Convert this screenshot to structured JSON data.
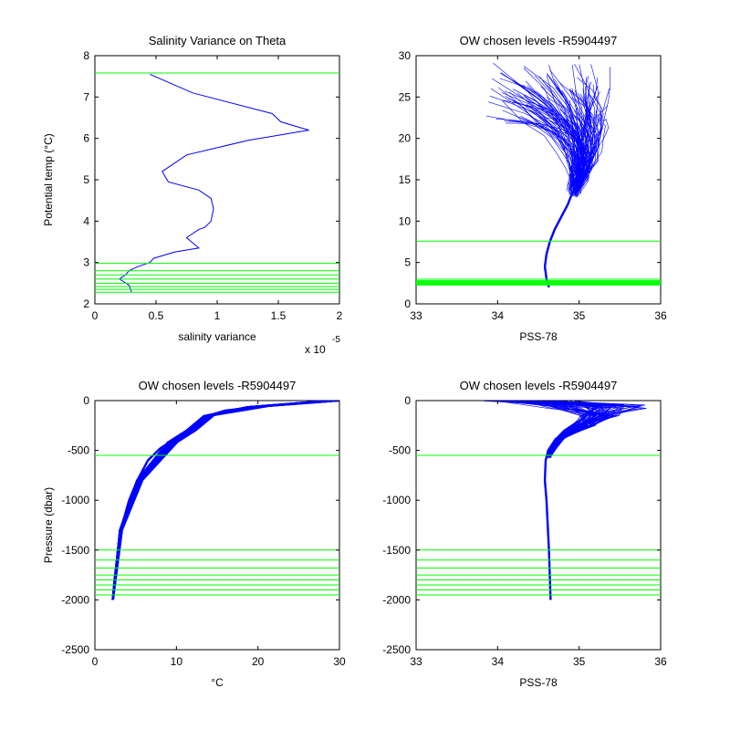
{
  "colors": {
    "profile": "#0000ff",
    "levels": "#00ff00",
    "axes": "#000000",
    "background": "#ffffff"
  },
  "chart_data": [
    {
      "id": "p1",
      "type": "line",
      "title": "Salinity Variance on Theta",
      "xlabel": "salinity variance",
      "ylabel": "Potential temp (°C)",
      "multiplier": "x 10",
      "multiplier_exp": "-5",
      "xlim": [
        0,
        2
      ],
      "ylim": [
        2,
        8
      ],
      "xticks": [
        0,
        0.5,
        1,
        1.5,
        2
      ],
      "xtick_labels": [
        "0",
        "0.5",
        "1",
        "1.5",
        "2"
      ],
      "yticks": [
        2,
        3,
        4,
        5,
        6,
        7,
        8
      ],
      "ytick_labels": [
        "2",
        "3",
        "4",
        "5",
        "6",
        "7",
        "8"
      ],
      "hlines": [
        7.58,
        2.98,
        2.8,
        2.7,
        2.6,
        2.5,
        2.42,
        2.35,
        2.28
      ],
      "series": [
        {
          "x": [
            0.45,
            0.8,
            1.45,
            1.52,
            1.75,
            1.25,
            0.75,
            0.65,
            0.55,
            0.6,
            0.85,
            0.95,
            0.97,
            0.95,
            0.9,
            0.85,
            0.75,
            0.85,
            0.65,
            0.48,
            0.45,
            0.35,
            0.28,
            0.25,
            0.2,
            0.28,
            0.3
          ],
          "y": [
            7.55,
            7.1,
            6.6,
            6.4,
            6.2,
            5.95,
            5.6,
            5.4,
            5.2,
            4.95,
            4.75,
            4.55,
            4.3,
            4.0,
            3.85,
            3.8,
            3.6,
            3.35,
            3.25,
            3.1,
            3.0,
            2.9,
            2.8,
            2.7,
            2.6,
            2.45,
            2.28
          ]
        }
      ]
    },
    {
      "id": "p2",
      "type": "line",
      "title": "OW chosen levels -R5904497",
      "xlabel": "PSS-78",
      "ylabel": "",
      "xlim": [
        33,
        36
      ],
      "ylim": [
        0,
        30
      ],
      "xticks": [
        33,
        34,
        35,
        36
      ],
      "xtick_labels": [
        "33",
        "34",
        "35",
        "36"
      ],
      "yticks": [
        0,
        5,
        10,
        15,
        20,
        25,
        30
      ],
      "ytick_labels": [
        "0",
        "5",
        "10",
        "15",
        "20",
        "25",
        "30"
      ],
      "hlines": [
        7.58,
        2.98,
        2.8,
        2.7,
        2.6,
        2.5,
        2.42,
        2.35,
        2.28
      ],
      "series": [
        {
          "x": [
            34.63,
            34.6,
            34.58,
            34.6,
            34.64,
            34.7,
            34.78,
            34.86,
            34.92
          ],
          "y": [
            2.0,
            3.0,
            4.5,
            6.0,
            7.5,
            9.0,
            10.5,
            12.0,
            13.5
          ]
        }
      ]
    },
    {
      "id": "p3",
      "type": "line",
      "title": "OW chosen levels -R5904497",
      "xlabel": "°C",
      "ylabel": "Pressure (dbar)",
      "xlim": [
        0,
        30
      ],
      "ylim": [
        -2500,
        0
      ],
      "xticks": [
        0,
        10,
        20,
        30
      ],
      "xtick_labels": [
        "0",
        "10",
        "20",
        "30"
      ],
      "yticks": [
        -2500,
        -2000,
        -1500,
        -1000,
        -500,
        0
      ],
      "ytick_labels": [
        "-2500",
        "-2000",
        "-1500",
        "-1000",
        "-500",
        "0"
      ],
      "hlines": [
        -550,
        -1500,
        -1600,
        -1680,
        -1750,
        -1800,
        -1850,
        -1900,
        -1950
      ],
      "series": [
        {
          "x": [
            2.2,
            2.4,
            2.7,
            3.0,
            3.5,
            4.2,
            5.2,
            6.5,
            8.0,
            9.5,
            11.0,
            11.8,
            12.5,
            13.5,
            16,
            20,
            25,
            29
          ],
          "y": [
            -2000,
            -1800,
            -1600,
            -1400,
            -1200,
            -1000,
            -800,
            -600,
            -480,
            -400,
            -350,
            -300,
            -230,
            -160,
            -100,
            -60,
            -30,
            -5
          ]
        }
      ]
    },
    {
      "id": "p4",
      "type": "line",
      "title": "OW chosen levels -R5904497",
      "xlabel": "PSS-78",
      "ylabel": "",
      "xlim": [
        33,
        36
      ],
      "ylim": [
        -2500,
        0
      ],
      "xticks": [
        33,
        34,
        35,
        36
      ],
      "xtick_labels": [
        "33",
        "34",
        "35",
        "36"
      ],
      "yticks": [
        -2500,
        -2000,
        -1500,
        -1000,
        -500,
        0
      ],
      "ytick_labels": [
        "-2500",
        "-2000",
        "-1500",
        "-1000",
        "-500",
        "0"
      ],
      "hlines": [
        -550,
        -1500,
        -1600,
        -1680,
        -1750,
        -1800,
        -1850,
        -1900,
        -1950
      ],
      "series": [
        {
          "x": [
            34.65,
            34.63,
            34.6,
            34.58,
            34.59,
            34.62,
            34.7,
            34.82,
            34.95,
            35.05,
            35.1
          ],
          "y": [
            -2000,
            -1500,
            -1000,
            -800,
            -600,
            -500,
            -400,
            -300,
            -230,
            -180,
            -140
          ]
        }
      ]
    }
  ]
}
